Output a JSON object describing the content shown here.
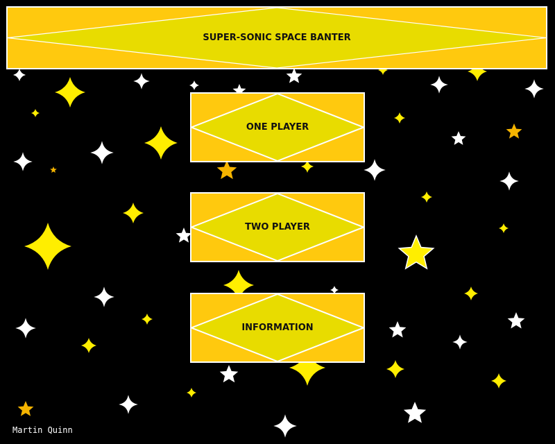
{
  "title": "SUPER-SONIC SPACE BANTER",
  "menu": {
    "items": [
      {
        "label": "ONE PLAYER"
      },
      {
        "label": "TWO PLAYER"
      },
      {
        "label": "INFORMATION"
      }
    ]
  },
  "credit": "Martin Quinn",
  "colors": {
    "background": "#000000",
    "panel": "#FFC90E",
    "diamond": "#E8DC00",
    "border": "#FFFFFF",
    "star_yellow": "#FFEE00",
    "star_orange": "#F5B400",
    "star_white": "#FFFFFF"
  },
  "icons": {
    "decor": [
      "four-point-star-icon",
      "five-point-star-icon"
    ]
  }
}
